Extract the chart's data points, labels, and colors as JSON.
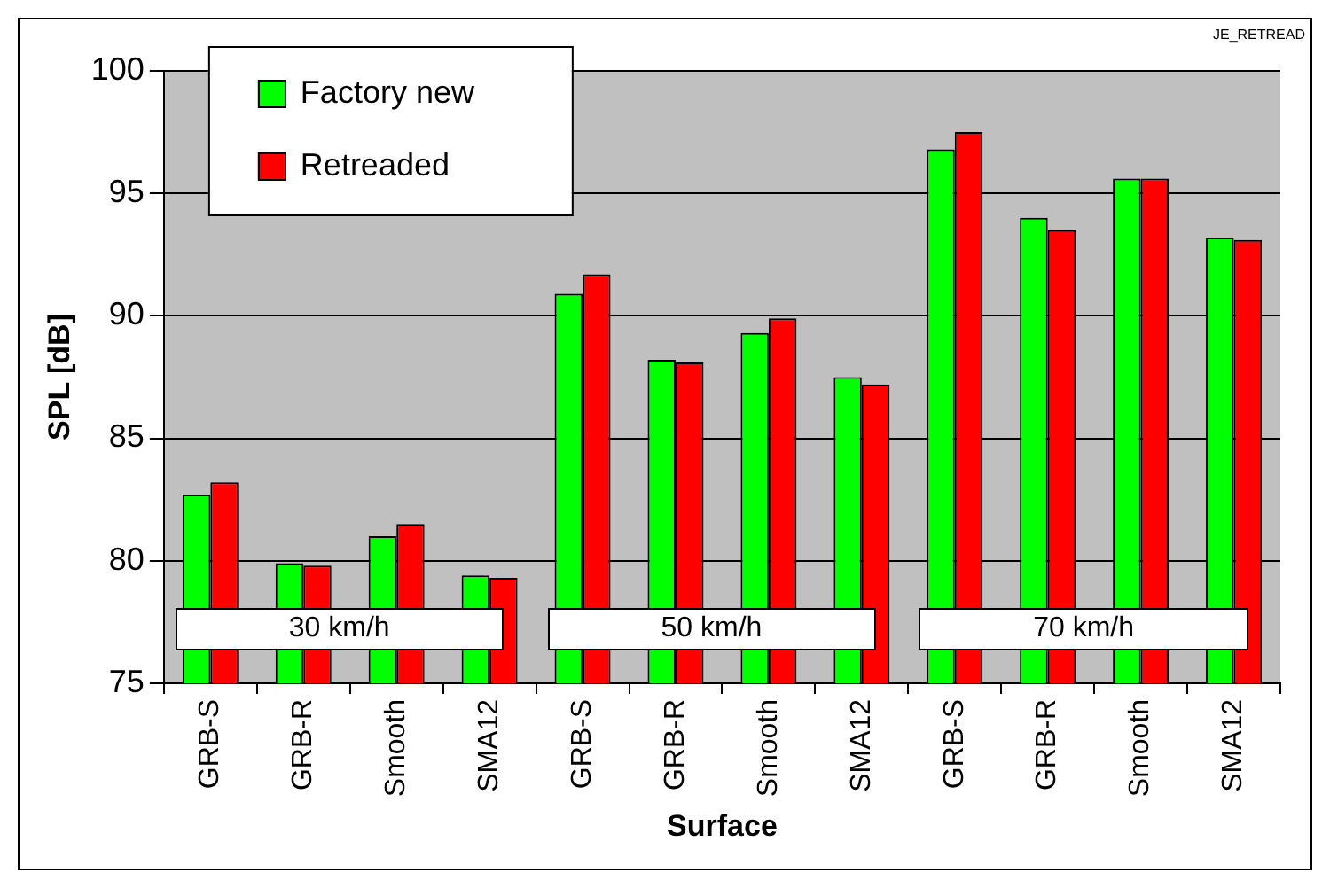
{
  "chart_data": {
    "type": "bar",
    "xlabel": "Surface",
    "ylabel": "SPL [dB]",
    "categories": [
      "GRB-S",
      "GRB-R",
      "Smooth",
      "SMA12",
      "GRB-S",
      "GRB-R",
      "Smooth",
      "SMA12",
      "GRB-S",
      "GRB-R",
      "Smooth",
      "SMA12"
    ],
    "series": [
      {
        "name": "Factory new",
        "color": "#00ff00",
        "values": [
          82.7,
          79.9,
          81.0,
          79.4,
          90.9,
          88.2,
          89.3,
          87.5,
          96.8,
          94.0,
          95.6,
          93.2
        ]
      },
      {
        "name": "Retreaded",
        "color": "#ff0000",
        "values": [
          83.2,
          79.8,
          81.5,
          79.3,
          91.7,
          88.1,
          89.9,
          87.2,
          97.5,
          93.5,
          95.6,
          93.1
        ]
      }
    ],
    "ylim": [
      75,
      100
    ],
    "yticks": [
      75,
      80,
      85,
      90,
      95,
      100
    ],
    "grid": "y",
    "legend": "top left",
    "annotations": [
      "30 km/h",
      "50 km/h",
      "70 km/h",
      "JE_RETREAD"
    ]
  }
}
